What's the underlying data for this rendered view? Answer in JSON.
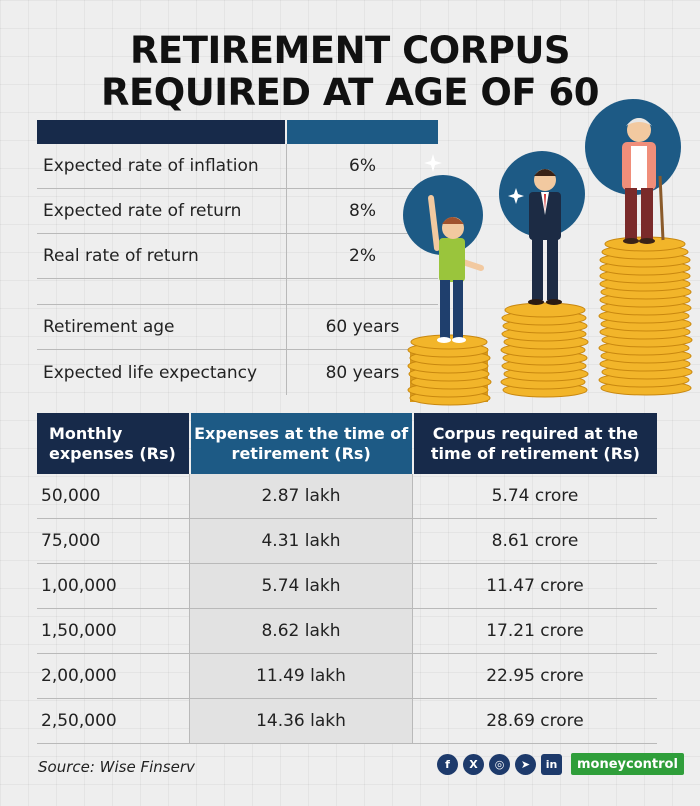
{
  "title": {
    "line1": "RETIREMENT CORPUS",
    "line2": "REQUIRED AT AGE OF 60"
  },
  "parameters": [
    {
      "label": "Expected rate of inflation",
      "value": "6%"
    },
    {
      "label": "Expected rate of return",
      "value": "8%"
    },
    {
      "label": "Real rate of return",
      "value": "2%"
    },
    {
      "label": "",
      "value": ""
    },
    {
      "label": "Retirement age",
      "value": "60 years"
    },
    {
      "label": "Expected life expectancy",
      "value": "80 years"
    }
  ],
  "table": {
    "headers": [
      "Monthly expenses (Rs)",
      "Expenses at the time of retirement (Rs)",
      "Corpus required at the time of retirement (Rs)"
    ],
    "rows": [
      [
        "50,000",
        "2.87 lakh",
        "5.74 crore"
      ],
      [
        "75,000",
        "4.31 lakh",
        "8.61 crore"
      ],
      [
        "1,00,000",
        "5.74 lakh",
        "11.47 crore"
      ],
      [
        "1,50,000",
        "8.62 lakh",
        "17.21 crore"
      ],
      [
        "2,00,000",
        "11.49 lakh",
        "22.95 crore"
      ],
      [
        "2,50,000",
        "14.36 lakh",
        "28.69 crore"
      ]
    ]
  },
  "source": "Source: Wise Finserv",
  "social": {
    "icons": [
      "facebook-icon",
      "x-icon",
      "instagram-icon",
      "telegram-icon",
      "linkedin-icon"
    ],
    "glyphs": [
      "f",
      "X",
      "◎",
      "➤",
      "in"
    ]
  },
  "brand": "moneycontrol",
  "colors": {
    "navy": "#172a4a",
    "blue": "#1d5a85",
    "brand_green": "#2f9e3a",
    "coin_gold": "#f2b52a"
  }
}
